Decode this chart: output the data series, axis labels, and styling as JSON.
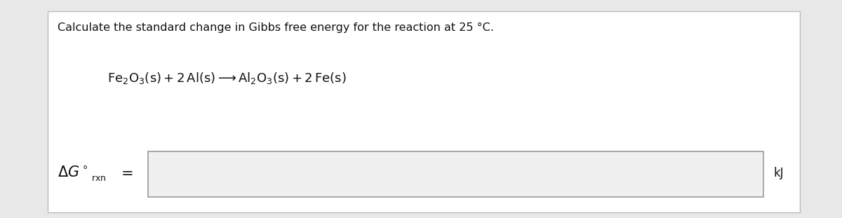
{
  "background_color": "#e8e8e8",
  "panel_color": "#ffffff",
  "panel_border_color": "#bbbbbb",
  "title_text": "Calculate the standard change in Gibbs free energy for the reaction at 25 °C.",
  "title_fontsize": 11.5,
  "title_font": "DejaVu Sans",
  "equation_fontsize": 13,
  "label_fontsize": 15,
  "kj_fontsize": 12,
  "input_box_color": "#f0f0f0",
  "input_box_border": "#999999"
}
